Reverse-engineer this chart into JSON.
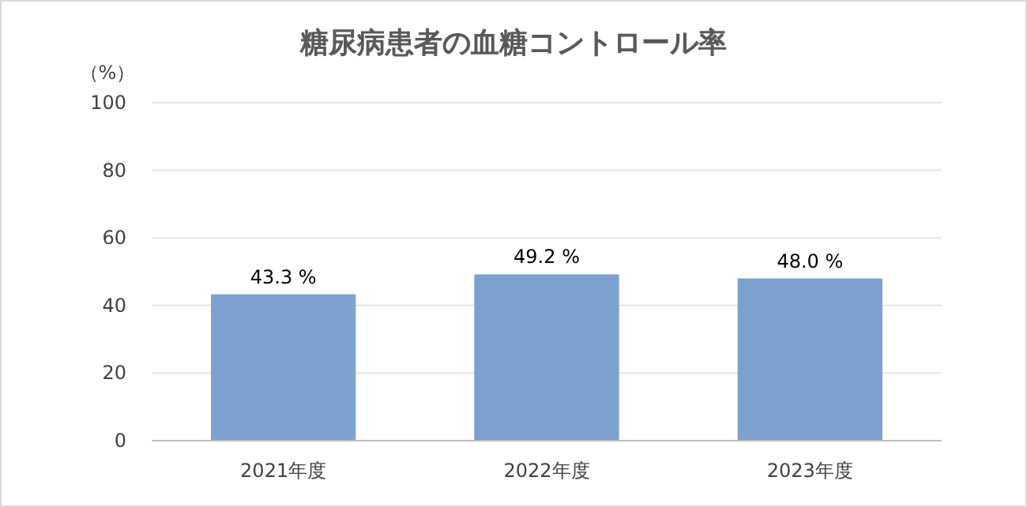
{
  "chart_data": {
    "type": "bar",
    "title": "糖尿病患者の血糖コントロール率",
    "ylabel": "（%）",
    "categories": [
      "2021年度",
      "2022年度",
      "2023年度"
    ],
    "values": [
      43.3,
      49.2,
      48.0
    ],
    "value_labels": [
      "43.3 %",
      "49.2 %",
      "48.0 %"
    ],
    "color": "#7ea2cf",
    "ylim": [
      0,
      100
    ],
    "yticks": [
      0,
      20,
      40,
      60,
      80,
      100
    ],
    "grid": "y"
  }
}
